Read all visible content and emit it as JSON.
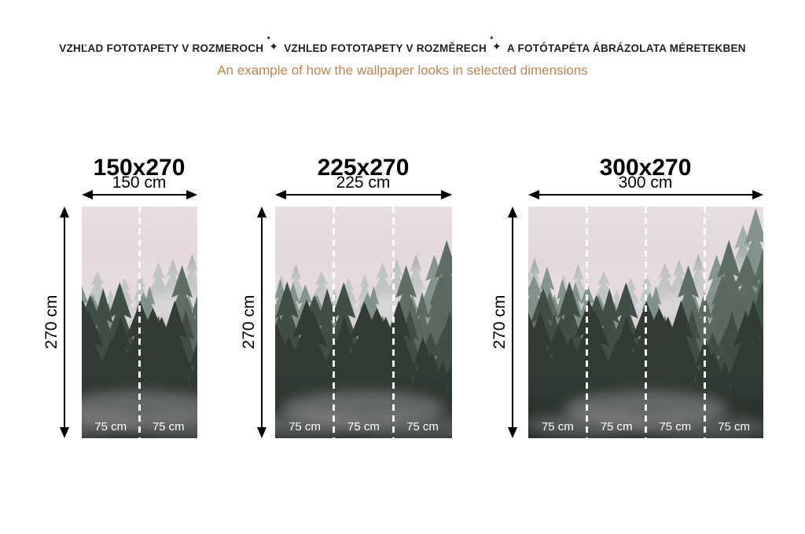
{
  "header": {
    "title_parts": [
      "VZHĽAD FOTOTAPETY V ROZMEROCH",
      "VZHLED FOTOTAPETY V ROZMĚRECH",
      "A FOTÓTAPÉTA ÁBRÁZOLATA MÉRETEKBEN"
    ],
    "separator_icon": "✦",
    "subtitle": "An example of how the wallpaper looks in selected dimensions"
  },
  "colors": {
    "heading": "#1f1f23",
    "subtitle": "#c5824f",
    "measurement": "#000000",
    "segment_label": "#ffffff"
  },
  "panels": [
    {
      "title": "150x270",
      "width_label": "150 cm",
      "height_label": "270 cm",
      "segments": [
        "75 cm",
        "75 cm"
      ]
    },
    {
      "title": "225x270",
      "width_label": "225 cm",
      "height_label": "270 cm",
      "segments": [
        "75 cm",
        "75 cm",
        "75 cm"
      ]
    },
    {
      "title": "300x270",
      "width_label": "300 cm",
      "height_label": "270 cm",
      "segments": [
        "75 cm",
        "75 cm",
        "75 cm",
        "75 cm"
      ]
    }
  ],
  "image": {
    "subject": "misty-forest-wallpaper"
  }
}
